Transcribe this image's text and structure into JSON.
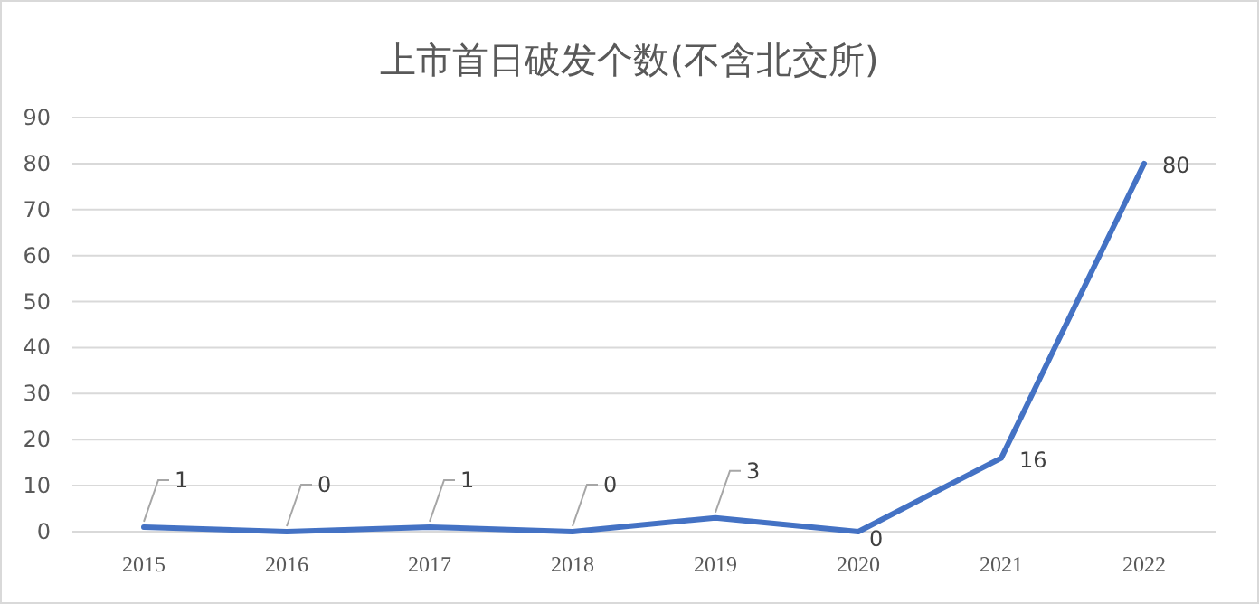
{
  "chart_data": {
    "type": "line",
    "title": "上市首日破发个数(不含北交所)",
    "categories": [
      "2015",
      "2016",
      "2017",
      "2018",
      "2019",
      "2020",
      "2021",
      "2022"
    ],
    "values": [
      1,
      0,
      1,
      0,
      3,
      0,
      16,
      80
    ],
    "color": "#4472c4",
    "ylim": [
      0,
      90
    ],
    "yticks": [
      0,
      10,
      20,
      30,
      40,
      50,
      60,
      70,
      80,
      90
    ],
    "grid": "y",
    "data_labels": true,
    "marker": "none",
    "line_style": "solid"
  }
}
